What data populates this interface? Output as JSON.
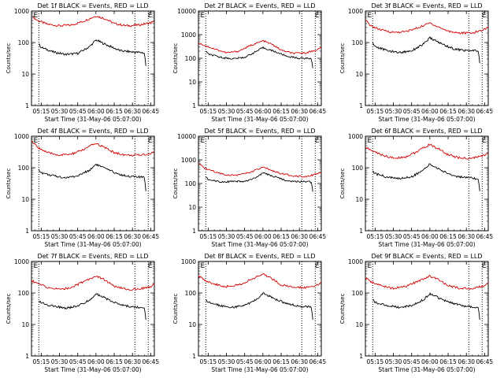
{
  "page": {
    "background": "#ffffff"
  },
  "colors": {
    "events": "#000000",
    "lld": "#d40000",
    "axis": "#000000"
  },
  "chart_data": [
    {
      "type": "line",
      "title": "Det 1f BLACK = Events, RED = LLD",
      "xlabel": "Start Time (31-May-06 05:07:00)",
      "ylabel": "Counts/sec",
      "yscale": "log",
      "ylim": [
        1,
        1000
      ],
      "ytick_labels": [
        "1",
        "10",
        "100",
        "1000"
      ],
      "xlim": [
        "05:07",
        "06:48"
      ],
      "xtick_labels": [
        "05:15",
        "05:30",
        "05:45",
        "06:00",
        "06:15",
        "06:30",
        "06:45"
      ],
      "vlines": [
        "05:13",
        "06:32",
        "06:43"
      ],
      "markers": [
        {
          "text": "E",
          "at": "05:08"
        },
        {
          "text": "E",
          "at": "06:42"
        }
      ],
      "series": [
        {
          "role": "lld",
          "color": "#d40000",
          "x": [
            "05:08",
            "05:12",
            "05:20",
            "05:30",
            "05:40",
            "05:50",
            "06:00",
            "06:08",
            "06:15",
            "06:25",
            "06:35",
            "06:45",
            "06:48"
          ],
          "y": [
            650,
            500,
            380,
            340,
            360,
            480,
            700,
            560,
            400,
            340,
            360,
            420,
            480
          ]
        },
        {
          "role": "events",
          "color": "#000000",
          "x": [
            "05:13",
            "05:15",
            "05:25",
            "05:35",
            "05:45",
            "05:55",
            "06:00",
            "06:10",
            "06:20",
            "06:30",
            "06:38",
            "06:40",
            "06:41"
          ],
          "y": [
            90,
            70,
            50,
            42,
            45,
            75,
            120,
            80,
            55,
            50,
            48,
            45,
            18
          ]
        }
      ]
    },
    {
      "type": "line",
      "title": "Det 2f BLACK = Events, RED = LLD",
      "xlabel": "Start Time (31-May-06 05:07:00)",
      "ylabel": "Counts/sec",
      "yscale": "log",
      "ylim": [
        1,
        10000
      ],
      "ytick_labels": [
        "1",
        "10",
        "100",
        "1000",
        "10000"
      ],
      "xlim": [
        "05:07",
        "06:48"
      ],
      "xtick_labels": [
        "05:15",
        "05:30",
        "05:45",
        "06:00",
        "06:15",
        "06:30",
        "06:45"
      ],
      "vlines": [
        "05:13",
        "06:32",
        "06:43"
      ],
      "markers": [
        {
          "text": "E",
          "at": "05:08"
        },
        {
          "text": "E",
          "at": "06:42"
        }
      ],
      "series": [
        {
          "role": "lld",
          "color": "#d40000",
          "x": [
            "05:07",
            "05:12",
            "05:20",
            "05:30",
            "05:40",
            "05:50",
            "06:00",
            "06:08",
            "06:15",
            "06:25",
            "06:35",
            "06:45",
            "06:48"
          ],
          "y": [
            450,
            350,
            250,
            170,
            200,
            350,
            550,
            380,
            220,
            160,
            170,
            230,
            300
          ]
        },
        {
          "role": "events",
          "color": "#000000",
          "x": [
            "05:13",
            "05:15",
            "05:25",
            "05:35",
            "05:45",
            "05:55",
            "06:00",
            "06:10",
            "06:20",
            "06:30",
            "06:38",
            "06:40",
            "06:41"
          ],
          "y": [
            200,
            150,
            110,
            95,
            110,
            200,
            280,
            190,
            120,
            100,
            100,
            90,
            38
          ]
        }
      ]
    },
    {
      "type": "line",
      "title": "Det 3f BLACK = Events, RED = LLD",
      "xlabel": "Start Time (31-May-06 05:07:00)",
      "ylabel": "Counts/sec",
      "yscale": "log",
      "ylim": [
        1,
        1000
      ],
      "ytick_labels": [
        "1",
        "10",
        "100",
        "1000"
      ],
      "xlim": [
        "05:07",
        "06:48"
      ],
      "xtick_labels": [
        "05:15",
        "05:30",
        "05:45",
        "06:00",
        "06:15",
        "06:30",
        "06:45"
      ],
      "vlines": [
        "05:13",
        "06:32",
        "06:43"
      ],
      "markers": [
        {
          "text": "E",
          "at": "05:08"
        },
        {
          "text": "E",
          "at": "06:42"
        }
      ],
      "series": [
        {
          "role": "lld",
          "color": "#d40000",
          "x": [
            "05:07",
            "05:12",
            "05:20",
            "05:30",
            "05:40",
            "05:50",
            "06:00",
            "06:08",
            "06:15",
            "06:25",
            "06:35",
            "06:45",
            "06:48"
          ],
          "y": [
            500,
            330,
            250,
            210,
            220,
            290,
            420,
            300,
            230,
            200,
            200,
            260,
            320
          ]
        },
        {
          "role": "events",
          "color": "#000000",
          "x": [
            "05:13",
            "05:15",
            "05:25",
            "05:35",
            "05:45",
            "05:55",
            "06:00",
            "06:10",
            "06:20",
            "06:30",
            "06:38",
            "06:40",
            "06:41"
          ],
          "y": [
            100,
            75,
            55,
            48,
            55,
            90,
            140,
            90,
            62,
            55,
            55,
            52,
            22
          ]
        }
      ]
    },
    {
      "type": "line",
      "title": "Det 4f BLACK = Events, RED = LLD",
      "xlabel": "Start Time (31-May-06 05:07:00)",
      "ylabel": "Counts/sec",
      "yscale": "log",
      "ylim": [
        1,
        1000
      ],
      "ytick_labels": [
        "1",
        "10",
        "100",
        "1000"
      ],
      "xlim": [
        "05:07",
        "06:48"
      ],
      "xtick_labels": [
        "05:15",
        "05:30",
        "05:45",
        "06:00",
        "06:15",
        "06:30",
        "06:45"
      ],
      "vlines": [
        "05:13",
        "06:32",
        "06:43"
      ],
      "markers": [
        {
          "text": "E",
          "at": "05:08"
        },
        {
          "text": "E",
          "at": "06:42"
        }
      ],
      "series": [
        {
          "role": "lld",
          "color": "#d40000",
          "x": [
            "05:07",
            "05:12",
            "05:20",
            "05:30",
            "05:40",
            "05:50",
            "06:00",
            "06:08",
            "06:15",
            "06:25",
            "06:35",
            "06:45",
            "06:48"
          ],
          "y": [
            700,
            450,
            300,
            250,
            270,
            380,
            600,
            420,
            300,
            250,
            250,
            280,
            330
          ]
        },
        {
          "role": "events",
          "color": "#000000",
          "x": [
            "05:13",
            "05:15",
            "05:25",
            "05:35",
            "05:45",
            "05:55",
            "06:00",
            "06:10",
            "06:20",
            "06:30",
            "06:38",
            "06:40",
            "06:41"
          ],
          "y": [
            90,
            70,
            55,
            48,
            55,
            85,
            130,
            85,
            60,
            52,
            50,
            48,
            18
          ]
        }
      ]
    },
    {
      "type": "line",
      "title": "Det 5f BLACK = Events, RED = LLD",
      "xlabel": "Start Time (31-May-06 05:07:00)",
      "ylabel": "Counts/sec",
      "yscale": "log",
      "ylim": [
        1,
        10000
      ],
      "ytick_labels": [
        "1",
        "10",
        "100",
        "1000",
        "10000"
      ],
      "xlim": [
        "05:07",
        "06:48"
      ],
      "xtick_labels": [
        "05:15",
        "05:30",
        "05:45",
        "06:00",
        "06:15",
        "06:30",
        "06:45"
      ],
      "vlines": [
        "05:13",
        "06:32",
        "06:43"
      ],
      "markers": [
        {
          "text": "E",
          "at": "05:08"
        },
        {
          "text": "E",
          "at": "06:42"
        }
      ],
      "series": [
        {
          "role": "lld",
          "color": "#d40000",
          "x": [
            "05:07",
            "05:12",
            "05:20",
            "05:30",
            "05:40",
            "05:50",
            "06:00",
            "06:08",
            "06:15",
            "06:25",
            "06:35",
            "06:45",
            "06:48"
          ],
          "y": [
            700,
            450,
            320,
            230,
            230,
            300,
            480,
            350,
            260,
            210,
            200,
            250,
            300
          ]
        },
        {
          "role": "events",
          "color": "#000000",
          "x": [
            "05:13",
            "05:15",
            "05:25",
            "05:35",
            "05:45",
            "05:55",
            "06:00",
            "06:10",
            "06:20",
            "06:30",
            "06:38",
            "06:40",
            "06:41"
          ],
          "y": [
            180,
            150,
            120,
            120,
            120,
            180,
            280,
            190,
            130,
            120,
            120,
            110,
            45
          ]
        }
      ]
    },
    {
      "type": "line",
      "title": "Det 6f BLACK = Events, RED = LLD",
      "xlabel": "Start Time (31-May-06 05:07:00)",
      "ylabel": "Counts/sec",
      "yscale": "log",
      "ylim": [
        1,
        1000
      ],
      "ytick_labels": [
        "1",
        "10",
        "100",
        "1000"
      ],
      "xlim": [
        "05:07",
        "06:48"
      ],
      "xtick_labels": [
        "05:15",
        "05:30",
        "05:45",
        "06:00",
        "06:15",
        "06:30",
        "06:45"
      ],
      "vlines": [
        "05:13",
        "06:32",
        "06:43"
      ],
      "markers": [
        {
          "text": "E",
          "at": "05:08"
        },
        {
          "text": "E",
          "at": "06:42"
        }
      ],
      "series": [
        {
          "role": "lld",
          "color": "#d40000",
          "x": [
            "05:07",
            "05:12",
            "05:20",
            "05:30",
            "05:40",
            "05:50",
            "06:00",
            "06:08",
            "06:15",
            "06:25",
            "06:35",
            "06:45",
            "06:48"
          ],
          "y": [
            450,
            350,
            260,
            200,
            220,
            330,
            550,
            380,
            260,
            200,
            200,
            250,
            300
          ]
        },
        {
          "role": "events",
          "color": "#000000",
          "x": [
            "05:13",
            "05:15",
            "05:25",
            "05:35",
            "05:45",
            "05:55",
            "06:00",
            "06:10",
            "06:20",
            "06:30",
            "06:38",
            "06:40",
            "06:41"
          ],
          "y": [
            80,
            65,
            50,
            45,
            52,
            85,
            130,
            80,
            55,
            48,
            45,
            42,
            18
          ]
        }
      ]
    },
    {
      "type": "line",
      "title": "Det 7f BLACK = Events, RED = LLD",
      "xlabel": "Start Time (31-May-06 05:07:00)",
      "ylabel": "Counts/sec",
      "yscale": "log",
      "ylim": [
        1,
        1000
      ],
      "ytick_labels": [
        "1",
        "10",
        "100",
        "1000"
      ],
      "xlim": [
        "05:07",
        "06:48"
      ],
      "xtick_labels": [
        "05:15",
        "05:30",
        "05:45",
        "06:00",
        "06:15",
        "06:30",
        "06:45"
      ],
      "vlines": [
        "05:13",
        "06:32",
        "06:43"
      ],
      "markers": [
        {
          "text": "E",
          "at": "05:08"
        },
        {
          "text": "E",
          "at": "06:42"
        }
      ],
      "series": [
        {
          "role": "lld",
          "color": "#d40000",
          "x": [
            "05:07",
            "05:12",
            "05:20",
            "05:30",
            "05:40",
            "05:50",
            "06:00",
            "06:08",
            "06:15",
            "06:25",
            "06:35",
            "06:45",
            "06:48"
          ],
          "y": [
            250,
            200,
            150,
            130,
            150,
            230,
            350,
            250,
            160,
            130,
            130,
            160,
            200
          ]
        },
        {
          "role": "events",
          "color": "#000000",
          "x": [
            "05:13",
            "05:15",
            "05:25",
            "05:35",
            "05:45",
            "05:55",
            "06:00",
            "06:10",
            "06:20",
            "06:30",
            "06:38",
            "06:40",
            "06:41"
          ],
          "y": [
            55,
            48,
            38,
            33,
            38,
            60,
            95,
            62,
            42,
            36,
            35,
            33,
            14
          ]
        }
      ]
    },
    {
      "type": "line",
      "title": "Det 8f BLACK = Events, RED = LLD",
      "xlabel": "Start Time (31-May-06 05:07:00)",
      "ylabel": "Counts/sec",
      "yscale": "log",
      "ylim": [
        1,
        1000
      ],
      "ytick_labels": [
        "1",
        "10",
        "100",
        "1000"
      ],
      "xlim": [
        "05:07",
        "06:48"
      ],
      "xtick_labels": [
        "05:15",
        "05:30",
        "05:45",
        "06:00",
        "06:15",
        "06:30",
        "06:45"
      ],
      "vlines": [
        "05:13",
        "06:32",
        "06:43"
      ],
      "markers": [
        {
          "text": "E",
          "at": "05:08"
        },
        {
          "text": "E",
          "at": "06:42"
        }
      ],
      "series": [
        {
          "role": "lld",
          "color": "#d40000",
          "x": [
            "05:07",
            "05:12",
            "05:20",
            "05:30",
            "05:40",
            "05:50",
            "06:00",
            "06:08",
            "06:15",
            "06:25",
            "06:35",
            "06:45",
            "06:48"
          ],
          "y": [
            350,
            260,
            190,
            160,
            180,
            260,
            400,
            280,
            180,
            150,
            150,
            180,
            220
          ]
        },
        {
          "role": "events",
          "color": "#000000",
          "x": [
            "05:13",
            "05:15",
            "05:25",
            "05:35",
            "05:45",
            "05:55",
            "06:00",
            "06:10",
            "06:20",
            "06:30",
            "06:38",
            "06:40",
            "06:41"
          ],
          "y": [
            60,
            50,
            40,
            35,
            40,
            62,
            100,
            65,
            45,
            38,
            36,
            34,
            14
          ]
        }
      ]
    },
    {
      "type": "line",
      "title": "Det 9f BLACK = Events, RED = LLD",
      "xlabel": "Start Time (31-May-06 05:07:00)",
      "ylabel": "Counts/sec",
      "yscale": "log",
      "ylim": [
        1,
        1000
      ],
      "ytick_labels": [
        "1",
        "10",
        "100",
        "1000"
      ],
      "xlim": [
        "05:07",
        "06:48"
      ],
      "xtick_labels": [
        "05:15",
        "05:30",
        "05:45",
        "06:00",
        "06:15",
        "06:30",
        "06:45"
      ],
      "vlines": [
        "05:13",
        "06:32",
        "06:43"
      ],
      "markers": [
        {
          "text": "E",
          "at": "05:08"
        },
        {
          "text": "E",
          "at": "06:42"
        }
      ],
      "series": [
        {
          "role": "lld",
          "color": "#d40000",
          "x": [
            "05:07",
            "05:12",
            "05:20",
            "05:30",
            "05:40",
            "05:50",
            "06:00",
            "06:08",
            "06:15",
            "06:25",
            "06:35",
            "06:45",
            "06:48"
          ],
          "y": [
            300,
            220,
            170,
            140,
            160,
            230,
            350,
            250,
            170,
            140,
            140,
            170,
            210
          ]
        },
        {
          "role": "events",
          "color": "#000000",
          "x": [
            "05:13",
            "05:15",
            "05:25",
            "05:35",
            "05:45",
            "05:55",
            "06:00",
            "06:10",
            "06:20",
            "06:30",
            "06:38",
            "06:40",
            "06:41"
          ],
          "y": [
            60,
            50,
            40,
            35,
            40,
            62,
            95,
            62,
            45,
            38,
            36,
            34,
            14
          ]
        }
      ]
    }
  ]
}
